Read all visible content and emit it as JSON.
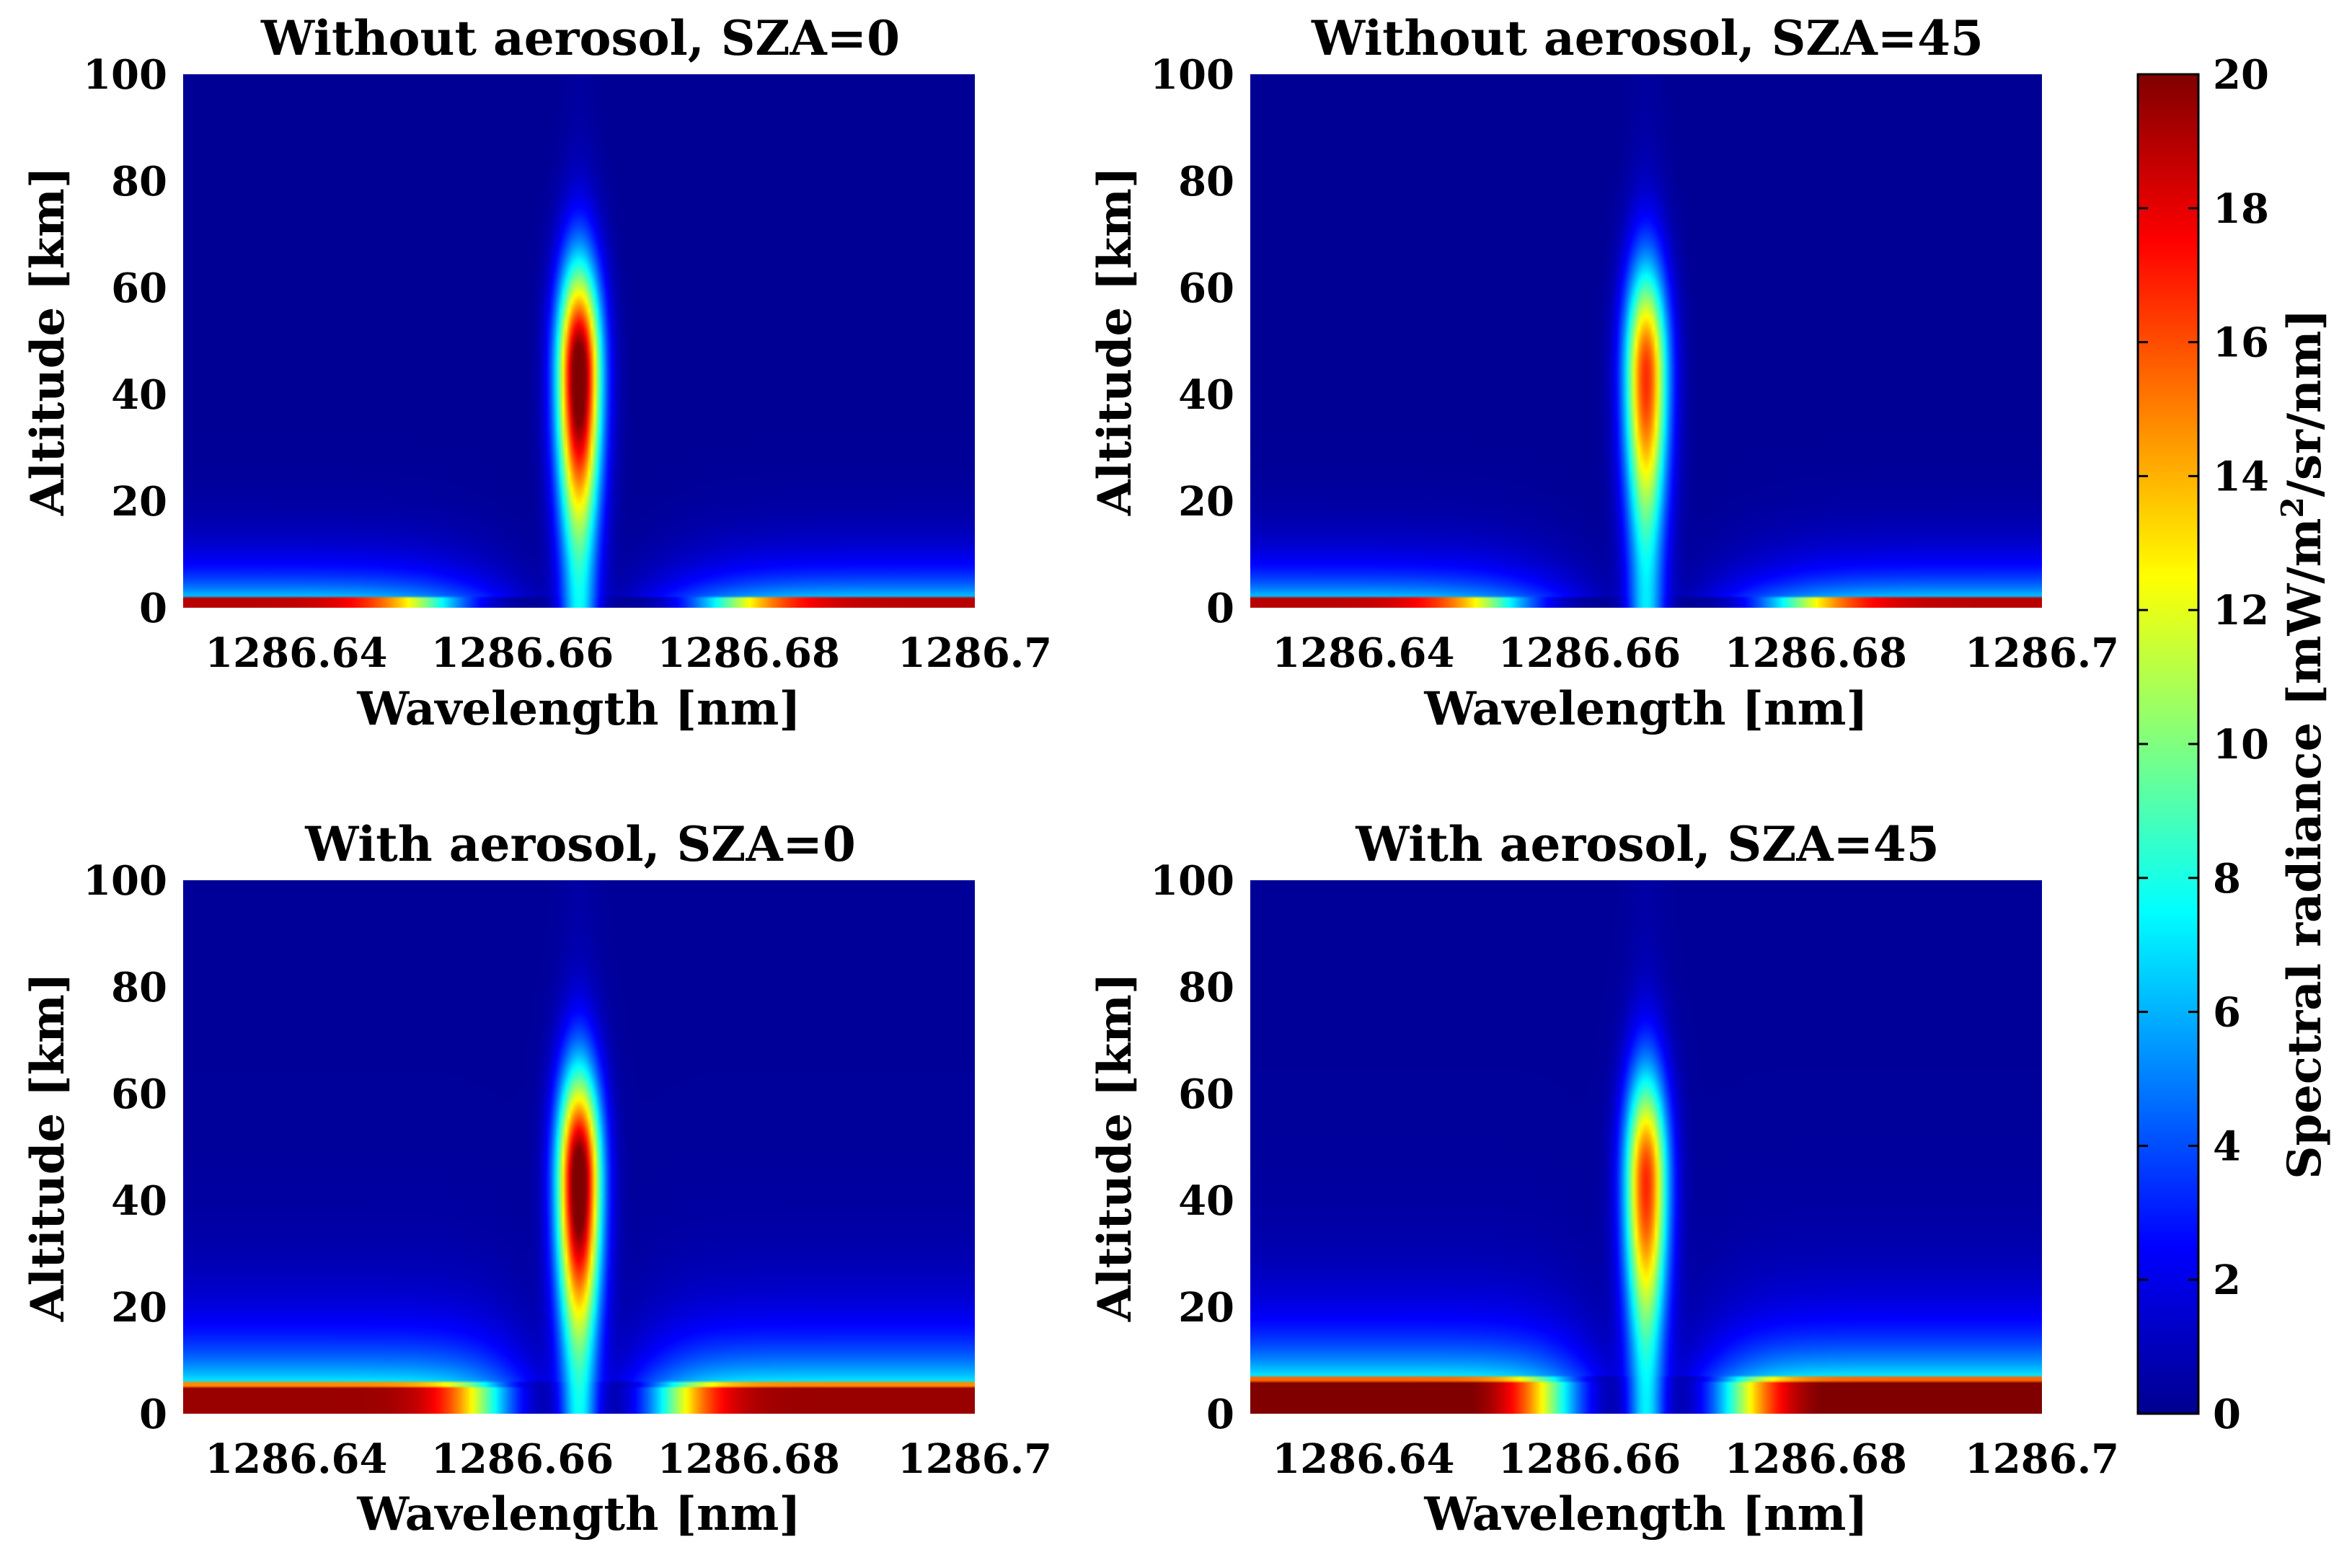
{
  "chart_data": [
    {
      "type": "heatmap",
      "title": "Without aerosol, SZA=0",
      "xlabel": "Wavelength [nm]",
      "ylabel": "Altitude [km]",
      "xlim": [
        1286.63,
        1286.7
      ],
      "ylim": [
        0,
        100
      ],
      "xticks": [
        1286.64,
        1286.66,
        1286.68,
        1286.7
      ],
      "xtick_labels": [
        "1286.64",
        "1286.66",
        "1286.68",
        "1286.7"
      ],
      "yticks": [
        0,
        20,
        40,
        60,
        80,
        100
      ],
      "ytick_labels": [
        "0",
        "20",
        "40",
        "60",
        "80",
        "100"
      ],
      "line_center_nm": 1286.665,
      "peak_altitude_km": 44,
      "peak_radiance": 20,
      "surface_radiance": 18.5,
      "background_radiance": 0.4
    },
    {
      "type": "heatmap",
      "title": "Without aerosol, SZA=45",
      "xlabel": "Wavelength [nm]",
      "ylabel": "Altitude [km]",
      "xlim": [
        1286.63,
        1286.7
      ],
      "ylim": [
        0,
        100
      ],
      "xticks": [
        1286.64,
        1286.66,
        1286.68,
        1286.7
      ],
      "xtick_labels": [
        "1286.64",
        "1286.66",
        "1286.68",
        "1286.7"
      ],
      "yticks": [
        0,
        20,
        40,
        60,
        80,
        100
      ],
      "ytick_labels": [
        "0",
        "20",
        "40",
        "60",
        "80",
        "100"
      ],
      "line_center_nm": 1286.665,
      "peak_altitude_km": 44,
      "peak_radiance": 15,
      "surface_radiance": 18.5,
      "background_radiance": 0.4
    },
    {
      "type": "heatmap",
      "title": "With aerosol, SZA=0",
      "xlabel": "Wavelength [nm]",
      "ylabel": "Altitude [km]",
      "xlim": [
        1286.63,
        1286.7
      ],
      "ylim": [
        0,
        100
      ],
      "xticks": [
        1286.64,
        1286.66,
        1286.68,
        1286.7
      ],
      "xtick_labels": [
        "1286.64",
        "1286.66",
        "1286.68",
        "1286.7"
      ],
      "yticks": [
        0,
        20,
        40,
        60,
        80,
        100
      ],
      "ytick_labels": [
        "0",
        "20",
        "40",
        "60",
        "80",
        "100"
      ],
      "line_center_nm": 1286.665,
      "peak_altitude_km": 44,
      "peak_radiance": 20,
      "surface_radiance": 19,
      "background_radiance": 0.5
    },
    {
      "type": "heatmap",
      "title": "With aerosol, SZA=45",
      "xlabel": "Wavelength [nm]",
      "ylabel": "Altitude [km]",
      "xlim": [
        1286.63,
        1286.7
      ],
      "ylim": [
        0,
        100
      ],
      "xticks": [
        1286.64,
        1286.66,
        1286.68,
        1286.7
      ],
      "xtick_labels": [
        "1286.64",
        "1286.66",
        "1286.68",
        "1286.7"
      ],
      "yticks": [
        0,
        20,
        40,
        60,
        80,
        100
      ],
      "ytick_labels": [
        "0",
        "20",
        "40",
        "60",
        "80",
        "100"
      ],
      "line_center_nm": 1286.665,
      "peak_altitude_km": 44,
      "peak_radiance": 15,
      "surface_radiance": 20,
      "background_radiance": 0.5
    }
  ],
  "colorbar": {
    "label": "Spectral radiance [mW/m",
    "label_sup": "2",
    "label_end": "/sr/nm]",
    "min": 0,
    "max": 20,
    "ticks": [
      0,
      2,
      4,
      6,
      8,
      10,
      12,
      14,
      16,
      18,
      20
    ],
    "tick_labels": [
      "0",
      "2",
      "4",
      "6",
      "8",
      "10",
      "12",
      "14",
      "16",
      "18",
      "20"
    ],
    "colormap": "jet"
  }
}
